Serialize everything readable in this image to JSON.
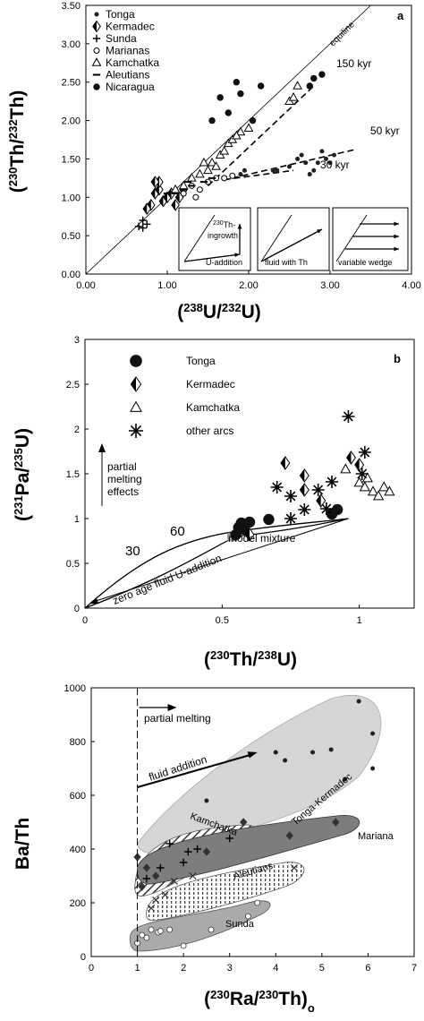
{
  "chart_data": [
    {
      "type": "scatter",
      "panel_label": "a",
      "xlabel": "(238U/232U)",
      "ylabel": "(230Th/232Th)",
      "xlim": [
        0,
        4
      ],
      "ylim": [
        0,
        3.5
      ],
      "x_ticks": [
        "0.00",
        "1.00",
        "2.00",
        "3.00",
        "4.00"
      ],
      "y_ticks": [
        "0.00",
        "0.50",
        "1.00",
        "1.50",
        "2.00",
        "2.50",
        "3.00",
        "3.50"
      ],
      "legend_position": "top-left",
      "legend": [
        "Tonga",
        "Kermadec",
        "Sunda",
        "Marianas",
        "Kamchatka",
        "Aleutians",
        "Nicaragua"
      ],
      "annotations": {
        "equiline": "equiline",
        "k150": "150 kyr",
        "k50": "50 kyr",
        "k30": "30 kyr"
      },
      "insets": {
        "ingrowth_sup": "230",
        "ingrowth_line1": "Th-",
        "ingrowth_line2": "ingrowth",
        "u_addition": "U-addition",
        "fluid_th": "fluid with Th",
        "variable_wedge": "variable wedge"
      },
      "equiline": [
        [
          0,
          0
        ],
        [
          4,
          4
        ]
      ],
      "trend_lines": [
        {
          "label": "150 kyr",
          "points": [
            [
              1.5,
              1.15
            ],
            [
              2.8,
              2.45
            ]
          ]
        },
        {
          "label": "50 kyr",
          "points": [
            [
              1.8,
              1.25
            ],
            [
              3.3,
              1.62
            ]
          ]
        },
        {
          "label": "30 kyr",
          "points": [
            [
              1.7,
              1.23
            ],
            [
              2.55,
              1.35
            ]
          ]
        }
      ],
      "series": [
        {
          "name": "Tonga",
          "points": [
            [
              1.9,
              1.3
            ],
            [
              1.95,
              1.35
            ],
            [
              2.3,
              1.35
            ],
            [
              2.6,
              1.5
            ],
            [
              2.65,
              1.55
            ],
            [
              2.7,
              1.45
            ],
            [
              2.8,
              1.35
            ],
            [
              2.85,
              1.45
            ],
            [
              2.9,
              1.6
            ],
            [
              2.95,
              1.5
            ],
            [
              3.0,
              1.45
            ],
            [
              3.05,
              1.55
            ],
            [
              2.35,
              1.35
            ],
            [
              2.5,
              1.4
            ],
            [
              2.75,
              1.3
            ]
          ]
        },
        {
          "name": "Kermadec",
          "points": [
            [
              0.8,
              0.9
            ],
            [
              0.85,
              1.05
            ],
            [
              0.9,
              1.1
            ],
            [
              0.95,
              0.95
            ],
            [
              0.9,
              1.2
            ],
            [
              0.85,
              1.2
            ],
            [
              1.0,
              1.0
            ],
            [
              1.05,
              1.05
            ],
            [
              1.1,
              0.9
            ],
            [
              0.75,
              0.85
            ],
            [
              1.15,
              1.0
            ],
            [
              1.2,
              1.1
            ]
          ]
        },
        {
          "name": "Sunda",
          "points": [
            [
              0.65,
              0.62
            ],
            [
              0.7,
              0.6
            ],
            [
              0.75,
              0.65
            ],
            [
              0.7,
              0.7
            ]
          ]
        },
        {
          "name": "Marianas",
          "points": [
            [
              1.2,
              1.05
            ],
            [
              1.3,
              1.15
            ],
            [
              1.4,
              1.1
            ],
            [
              1.5,
              1.2
            ],
            [
              1.6,
              1.25
            ],
            [
              1.7,
              1.25
            ],
            [
              1.8,
              1.28
            ],
            [
              1.35,
              1.0
            ]
          ]
        },
        {
          "name": "Kamchatka",
          "points": [
            [
              1.1,
              1.1
            ],
            [
              1.2,
              1.15
            ],
            [
              1.3,
              1.25
            ],
            [
              1.4,
              1.3
            ],
            [
              1.5,
              1.35
            ],
            [
              1.55,
              1.45
            ],
            [
              1.65,
              1.55
            ],
            [
              1.75,
              1.7
            ],
            [
              1.8,
              1.75
            ],
            [
              1.9,
              1.85
            ],
            [
              2.0,
              1.9
            ],
            [
              1.45,
              1.45
            ],
            [
              1.6,
              1.4
            ],
            [
              1.7,
              1.6
            ],
            [
              1.85,
              1.8
            ],
            [
              2.5,
              2.25
            ],
            [
              2.55,
              2.3
            ],
            [
              2.6,
              2.45
            ]
          ]
        },
        {
          "name": "Aleutians",
          "points": [
            [
              1.0,
              1.05
            ],
            [
              1.1,
              1.05
            ],
            [
              1.2,
              1.1
            ],
            [
              1.3,
              1.15
            ],
            [
              1.45,
              1.2
            ],
            [
              1.55,
              1.25
            ],
            [
              1.25,
              1.2
            ]
          ]
        },
        {
          "name": "Nicaragua",
          "points": [
            [
              1.55,
              2.0
            ],
            [
              1.65,
              2.3
            ],
            [
              1.75,
              2.1
            ],
            [
              1.85,
              2.5
            ],
            [
              1.9,
              2.35
            ],
            [
              2.05,
              2.0
            ],
            [
              2.15,
              2.45
            ],
            [
              2.8,
              2.55
            ],
            [
              2.9,
              2.6
            ],
            [
              2.75,
              2.45
            ]
          ]
        }
      ]
    },
    {
      "type": "scatter",
      "panel_label": "b",
      "xlabel": "(230Th/238U)",
      "ylabel": "(231Pa/235U)",
      "xlim": [
        0,
        1.2
      ],
      "ylim": [
        0,
        3
      ],
      "x_ticks": [
        "0",
        "0.5",
        "1"
      ],
      "y_ticks": [
        "0",
        "0.5",
        "1",
        "1.5",
        "2",
        "2.5",
        "3"
      ],
      "legend_position": "top-left",
      "legend": [
        "Tonga",
        "Kermadec",
        "Kamchatka",
        "other arcs"
      ],
      "annotations": {
        "partial_melting": [
          "partial",
          "melting",
          "effects"
        ],
        "sixty": "60",
        "thirty": "30",
        "model_mixture": "model mixture",
        "zero_age": "zero age fluid U-addition"
      },
      "series": [
        {
          "name": "Tonga",
          "points": [
            [
              0.55,
              0.82
            ],
            [
              0.56,
              0.9
            ],
            [
              0.57,
              0.95
            ],
            [
              0.58,
              0.88
            ],
            [
              0.6,
              0.96
            ],
            [
              0.67,
              0.99
            ],
            [
              0.9,
              1.05
            ],
            [
              0.92,
              1.1
            ]
          ]
        },
        {
          "name": "Kermadec",
          "points": [
            [
              0.6,
              0.82
            ],
            [
              0.73,
              1.62
            ],
            [
              0.8,
              1.48
            ],
            [
              0.8,
              1.32
            ],
            [
              0.86,
              1.2
            ],
            [
              0.97,
              1.68
            ],
            [
              1.0,
              1.6
            ]
          ]
        },
        {
          "name": "Kamchatka",
          "points": [
            [
              0.95,
              1.55
            ],
            [
              1.0,
              1.4
            ],
            [
              1.02,
              1.35
            ],
            [
              1.05,
              1.3
            ],
            [
              1.07,
              1.25
            ],
            [
              1.09,
              1.35
            ],
            [
              1.11,
              1.3
            ],
            [
              1.03,
              1.45
            ]
          ]
        },
        {
          "name": "other arcs",
          "points": [
            [
              0.7,
              1.35
            ],
            [
              0.75,
              1.25
            ],
            [
              0.85,
              1.32
            ],
            [
              0.88,
              1.11
            ],
            [
              0.9,
              1.41
            ],
            [
              0.96,
              2.14
            ],
            [
              1.02,
              1.74
            ],
            [
              1.01,
              1.5
            ],
            [
              0.75,
              1.0
            ],
            [
              0.8,
              1.1
            ]
          ]
        }
      ]
    },
    {
      "type": "scatter",
      "xlabel": "(230Ra/230Th)o",
      "ylabel": "Ba/Th",
      "xlim": [
        0,
        7
      ],
      "ylim": [
        0,
        1000
      ],
      "x_ticks": [
        "0",
        "1",
        "2",
        "3",
        "4",
        "5",
        "6",
        "7"
      ],
      "y_ticks": [
        "0",
        "200",
        "400",
        "600",
        "800",
        "1000"
      ],
      "annotations": {
        "partial_melting": "partial melting",
        "fluid_addition": "fluid addition"
      },
      "fields": [
        "Tonga-Kermadec",
        "Kamchatka",
        "Mariana",
        "Aleutians",
        "Sunda"
      ],
      "series": [
        {
          "name": "Tonga-Kermadec",
          "points": [
            [
              2.5,
              580
            ],
            [
              4.0,
              760
            ],
            [
              4.2,
              730
            ],
            [
              4.8,
              760
            ],
            [
              5.2,
              770
            ],
            [
              5.5,
              660
            ],
            [
              5.8,
              950
            ],
            [
              6.1,
              830
            ],
            [
              6.1,
              700
            ]
          ]
        },
        {
          "name": "Mariana",
          "points": [
            [
              1.0,
              370
            ],
            [
              1.1,
              260
            ],
            [
              1.4,
              300
            ],
            [
              2.5,
              390
            ],
            [
              3.3,
              500
            ],
            [
              4.3,
              450
            ],
            [
              5.3,
              500
            ],
            [
              1.2,
              330
            ]
          ]
        },
        {
          "name": "Kamchatka",
          "points": [
            [
              1.2,
              290
            ],
            [
              1.5,
              330
            ],
            [
              2.0,
              350
            ],
            [
              2.3,
              400
            ],
            [
              3.0,
              440
            ],
            [
              1.7,
              420
            ],
            [
              2.1,
              390
            ]
          ]
        },
        {
          "name": "Aleutians",
          "points": [
            [
              1.3,
              180
            ],
            [
              1.6,
              230
            ],
            [
              1.8,
              280
            ],
            [
              2.2,
              300
            ],
            [
              4.4,
              330
            ],
            [
              1.4,
              210
            ]
          ]
        },
        {
          "name": "Sunda",
          "points": [
            [
              1.0,
              50
            ],
            [
              1.1,
              80
            ],
            [
              1.3,
              100
            ],
            [
              1.45,
              90
            ],
            [
              1.7,
              100
            ],
            [
              2.0,
              40
            ],
            [
              2.6,
              100
            ],
            [
              3.4,
              150
            ],
            [
              3.6,
              200
            ],
            [
              1.2,
              70
            ],
            [
              1.5,
              95
            ]
          ]
        }
      ]
    }
  ]
}
